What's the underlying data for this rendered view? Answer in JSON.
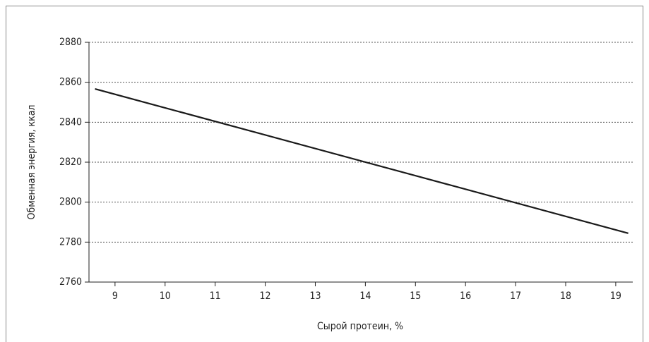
{
  "chart_data": {
    "type": "line",
    "x": [
      8.6,
      19.25
    ],
    "series": [
      {
        "name": "Обменная энергия",
        "color": "#1a1a1a",
        "values": [
          2856.7,
          2784.4
        ]
      }
    ],
    "xlabel": "Сырой протеин, %",
    "ylabel": "Обменная энергия, ккал",
    "xlim": [
      8.48,
      19.34
    ],
    "xticks": [
      9,
      10,
      11,
      12,
      13,
      14,
      15,
      16,
      17,
      18,
      19
    ],
    "ylim": [
      2760,
      2880
    ],
    "yticks": [
      2760,
      2780,
      2800,
      2820,
      2840,
      2860,
      2880
    ],
    "grid": true
  }
}
